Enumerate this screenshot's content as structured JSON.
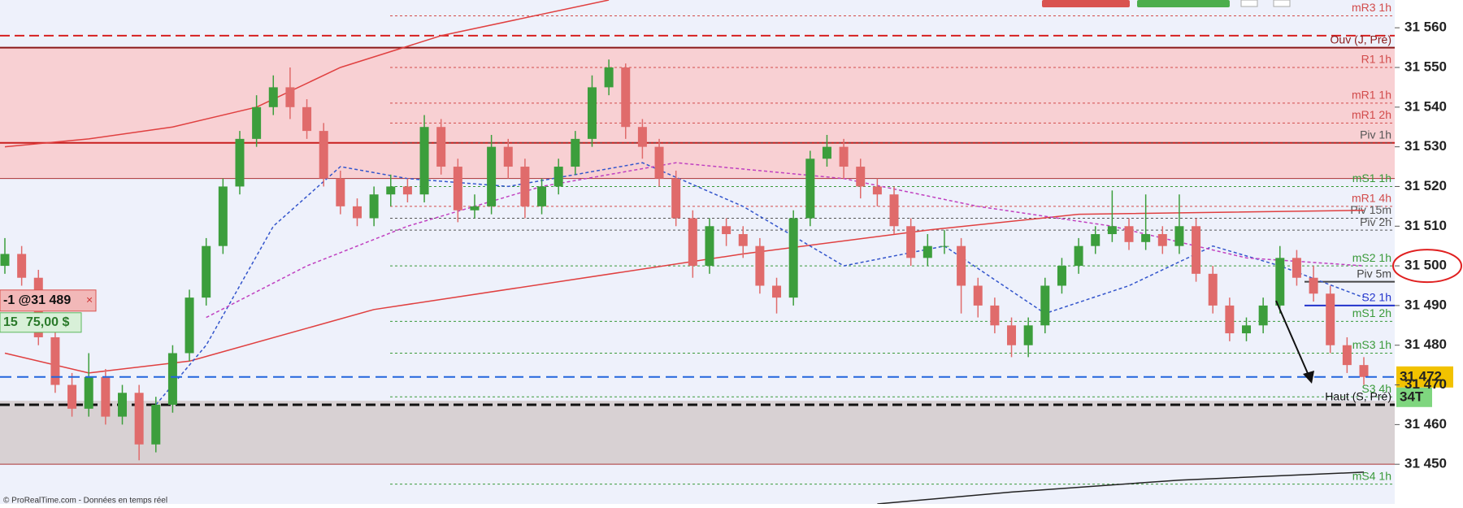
{
  "chart_data": {
    "type": "candlestick",
    "up_color": "#3c9e3c",
    "down_color": "#e06b6b",
    "background": "#eef1fb",
    "ylim": [
      31440,
      31567
    ],
    "yticks": [
      {
        "value": 31450,
        "label": "31 450"
      },
      {
        "value": 31460,
        "label": "31 460"
      },
      {
        "value": 31470,
        "label": "31 470"
      },
      {
        "value": 31480,
        "label": "31 480"
      },
      {
        "value": 31490,
        "label": "31 490"
      },
      {
        "value": 31500,
        "label": "31 500"
      },
      {
        "value": 31510,
        "label": "31 510"
      },
      {
        "value": 31520,
        "label": "31 520"
      },
      {
        "value": 31530,
        "label": "31 530"
      },
      {
        "value": 31540,
        "label": "31 540"
      },
      {
        "value": 31550,
        "label": "31 550"
      },
      {
        "value": 31560,
        "label": "31 560"
      }
    ],
    "circled_tick": 31500,
    "zones": [
      {
        "from": 31522,
        "to": 31555,
        "color": "#f8d0d3"
      },
      {
        "from": 31450,
        "to": 31466,
        "color": "#d8d1d3"
      }
    ],
    "reference_lines": [
      {
        "value": 31558,
        "color": "#d62020",
        "style": "dashed"
      },
      {
        "value": 31531,
        "color": "#c81e1e",
        "style": "solid"
      }
    ],
    "levels": [
      {
        "value": 31563,
        "label": "mR3 1h",
        "color": "#d24b4b",
        "style": "dotted"
      },
      {
        "value": 31555,
        "label": "Ouv (J, Pré)",
        "color": "#8b1a1a",
        "style": "solid"
      },
      {
        "value": 31550,
        "label": "R1 1h",
        "color": "#d24b4b",
        "style": "dotted"
      },
      {
        "value": 31541,
        "label": "mR1 1h",
        "color": "#d24b4b",
        "style": "dotted"
      },
      {
        "value": 31536,
        "label": "mR1 2h",
        "color": "#d24b4b",
        "style": "dotted"
      },
      {
        "value": 31531,
        "label": "Piv 1h",
        "color": "#555555",
        "style": "dotted"
      },
      {
        "value": 31520,
        "label": "mS1 1h",
        "color": "#3a9a3a",
        "style": "dotted"
      },
      {
        "value": 31515,
        "label": "mR1 4h",
        "color": "#d24b4b",
        "style": "dotted"
      },
      {
        "value": 31512,
        "label": "Piv 15m",
        "color": "#555555",
        "style": "dotted"
      },
      {
        "value": 31509,
        "label": "Piv 2h",
        "color": "#555555",
        "style": "dotted"
      },
      {
        "value": 31500,
        "label": "mS2 1h",
        "color": "#3a9a3a",
        "style": "dotted"
      },
      {
        "value": 31496,
        "label": "Piv 5m",
        "color": "#444444",
        "style": "short"
      },
      {
        "value": 31490,
        "label": "S2 1h",
        "color": "#2233cc",
        "style": "short"
      },
      {
        "value": 31486,
        "label": "mS1 2h",
        "color": "#3a9a3a",
        "style": "dotted"
      },
      {
        "value": 31478,
        "label": "mS3 1h",
        "color": "#3a9a3a",
        "style": "dotted"
      },
      {
        "value": 31467,
        "label": "S3 4h",
        "color": "#3a9a3a",
        "style": "dotted"
      },
      {
        "value": 31465,
        "label": "Haut (S, Pré)",
        "color": "#111111",
        "style": "dashed"
      },
      {
        "value": 31445,
        "label": "mS4 1h",
        "color": "#3a9a3a",
        "style": "dotted"
      }
    ],
    "candles": [
      [
        31500,
        31507,
        31498,
        31503
      ],
      [
        31503,
        31505,
        31495,
        31497
      ],
      [
        31497,
        31499,
        31480,
        31482
      ],
      [
        31482,
        31484,
        31468,
        31470
      ],
      [
        31470,
        31473,
        31462,
        31464
      ],
      [
        31464,
        31478,
        31462,
        31472
      ],
      [
        31472,
        31474,
        31460,
        31462
      ],
      [
        31462,
        31470,
        31460,
        31468
      ],
      [
        31468,
        31470,
        31451,
        31455
      ],
      [
        31455,
        31467,
        31453,
        31465
      ],
      [
        31465,
        31480,
        31463,
        31478
      ],
      [
        31478,
        31494,
        31476,
        31492
      ],
      [
        31492,
        31507,
        31490,
        31505
      ],
      [
        31505,
        31522,
        31503,
        31520
      ],
      [
        31520,
        31534,
        31518,
        31532
      ],
      [
        31532,
        31543,
        31530,
        31540
      ],
      [
        31540,
        31548,
        31538,
        31545
      ],
      [
        31545,
        31550,
        31537,
        31540
      ],
      [
        31540,
        31542,
        31532,
        31534
      ],
      [
        31534,
        31536,
        31520,
        31522
      ],
      [
        31522,
        31524,
        31513,
        31515
      ],
      [
        31515,
        31517,
        31510,
        31512
      ],
      [
        31512,
        31520,
        31510,
        31518
      ],
      [
        31518,
        31523,
        31515,
        31520
      ],
      [
        31520,
        31522,
        31516,
        31518
      ],
      [
        31518,
        31538,
        31516,
        31535
      ],
      [
        31535,
        31537,
        31523,
        31525
      ],
      [
        31525,
        31527,
        31511,
        31514
      ],
      [
        31514,
        31518,
        31512,
        31515
      ],
      [
        31515,
        31533,
        31513,
        31530
      ],
      [
        31530,
        31532,
        31522,
        31525
      ],
      [
        31525,
        31527,
        31512,
        31515
      ],
      [
        31515,
        31522,
        31513,
        31520
      ],
      [
        31520,
        31527,
        31518,
        31525
      ],
      [
        31525,
        31534,
        31523,
        31532
      ],
      [
        31532,
        31548,
        31530,
        31545
      ],
      [
        31545,
        31552,
        31543,
        31550
      ],
      [
        31550,
        31551,
        31532,
        31535
      ],
      [
        31535,
        31537,
        31527,
        31530
      ],
      [
        31530,
        31532,
        31520,
        31522
      ],
      [
        31522,
        31524,
        31510,
        31512
      ],
      [
        31512,
        31514,
        31497,
        31500
      ],
      [
        31500,
        31512,
        31498,
        31510
      ],
      [
        31510,
        31512,
        31505,
        31508
      ],
      [
        31508,
        31510,
        31502,
        31505
      ],
      [
        31505,
        31507,
        31493,
        31495
      ],
      [
        31495,
        31497,
        31488,
        31492
      ],
      [
        31492,
        31514,
        31490,
        31512
      ],
      [
        31512,
        31529,
        31510,
        31527
      ],
      [
        31527,
        31533,
        31525,
        31530
      ],
      [
        31530,
        31532,
        31522,
        31525
      ],
      [
        31525,
        31527,
        31517,
        31520
      ],
      [
        31520,
        31522,
        31515,
        31518
      ],
      [
        31518,
        31520,
        31508,
        31510
      ],
      [
        31510,
        31512,
        31500,
        31502
      ],
      [
        31502,
        31508,
        31500,
        31505
      ],
      [
        31505,
        31509,
        31503,
        31505
      ],
      [
        31505,
        31507,
        31488,
        31495
      ],
      [
        31495,
        31497,
        31487,
        31490
      ],
      [
        31490,
        31492,
        31483,
        31485
      ],
      [
        31485,
        31487,
        31477,
        31480
      ],
      [
        31480,
        31487,
        31477,
        31485
      ],
      [
        31485,
        31497,
        31483,
        31495
      ],
      [
        31495,
        31502,
        31493,
        31500
      ],
      [
        31500,
        31507,
        31498,
        31505
      ],
      [
        31505,
        31510,
        31503,
        31508
      ],
      [
        31508,
        31519,
        31506,
        31510
      ],
      [
        31510,
        31512,
        31504,
        31506
      ],
      [
        31506,
        31518,
        31504,
        31508
      ],
      [
        31508,
        31510,
        31503,
        31505
      ],
      [
        31505,
        31518,
        31503,
        31510
      ],
      [
        31510,
        31512,
        31496,
        31498
      ],
      [
        31498,
        31500,
        31488,
        31490
      ],
      [
        31490,
        31492,
        31481,
        31483
      ],
      [
        31483,
        31487,
        31481,
        31485
      ],
      [
        31485,
        31492,
        31483,
        31490
      ],
      [
        31490,
        31505,
        31488,
        31502
      ],
      [
        31502,
        31504,
        31495,
        31497
      ],
      [
        31497,
        31500,
        31491,
        31493
      ],
      [
        31493,
        31495,
        31478,
        31480
      ],
      [
        31480,
        31482,
        31473,
        31475
      ],
      [
        31475,
        31477,
        31470,
        31472
      ]
    ],
    "moving_averages": [
      {
        "color": "#e04040",
        "style": "solid",
        "x": [
          0,
          5,
          10,
          15,
          20,
          26,
          36
        ],
        "values": [
          31530,
          31532,
          31535,
          31540,
          31550,
          31558,
          31567
        ]
      },
      {
        "color": "#e04040",
        "style": "solid",
        "x": [
          0,
          5,
          11,
          22,
          33,
          44,
          55,
          64,
          81
        ],
        "values": [
          31478,
          31473,
          31476,
          31489,
          31496,
          31503,
          31509,
          31513,
          31514
        ]
      },
      {
        "color": "#222222",
        "style": "solid",
        "x": [
          52,
          60,
          70,
          81
        ],
        "values": [
          31440,
          31443,
          31446,
          31448
        ]
      },
      {
        "color": "#3355cc",
        "style": "dashed",
        "x": [
          9,
          12,
          16,
          20,
          24,
          30,
          38,
          44,
          50,
          56,
          62,
          67,
          72,
          76,
          81
        ],
        "values": [
          31465,
          31480,
          31510,
          31525,
          31522,
          31520,
          31526,
          31515,
          31500,
          31505,
          31488,
          31495,
          31505,
          31500,
          31492
        ]
      },
      {
        "color": "#c040c0",
        "style": "dashed",
        "x": [
          12,
          18,
          24,
          32,
          40,
          50,
          58,
          66,
          74,
          81
        ],
        "values": [
          31487,
          31500,
          31510,
          31520,
          31526,
          31522,
          31515,
          31510,
          31502,
          31500
        ]
      }
    ],
    "price_marker": {
      "value": 31472,
      "label": "31 472",
      "color": "#f2c200"
    },
    "timer": "34T",
    "order": {
      "value": 31489,
      "label": "-1 @31 489",
      "close": "×"
    },
    "position": {
      "quantity": "15",
      "pnl": "75,00 $"
    },
    "footer": "© ProRealTime.com - Données en temps réel"
  }
}
